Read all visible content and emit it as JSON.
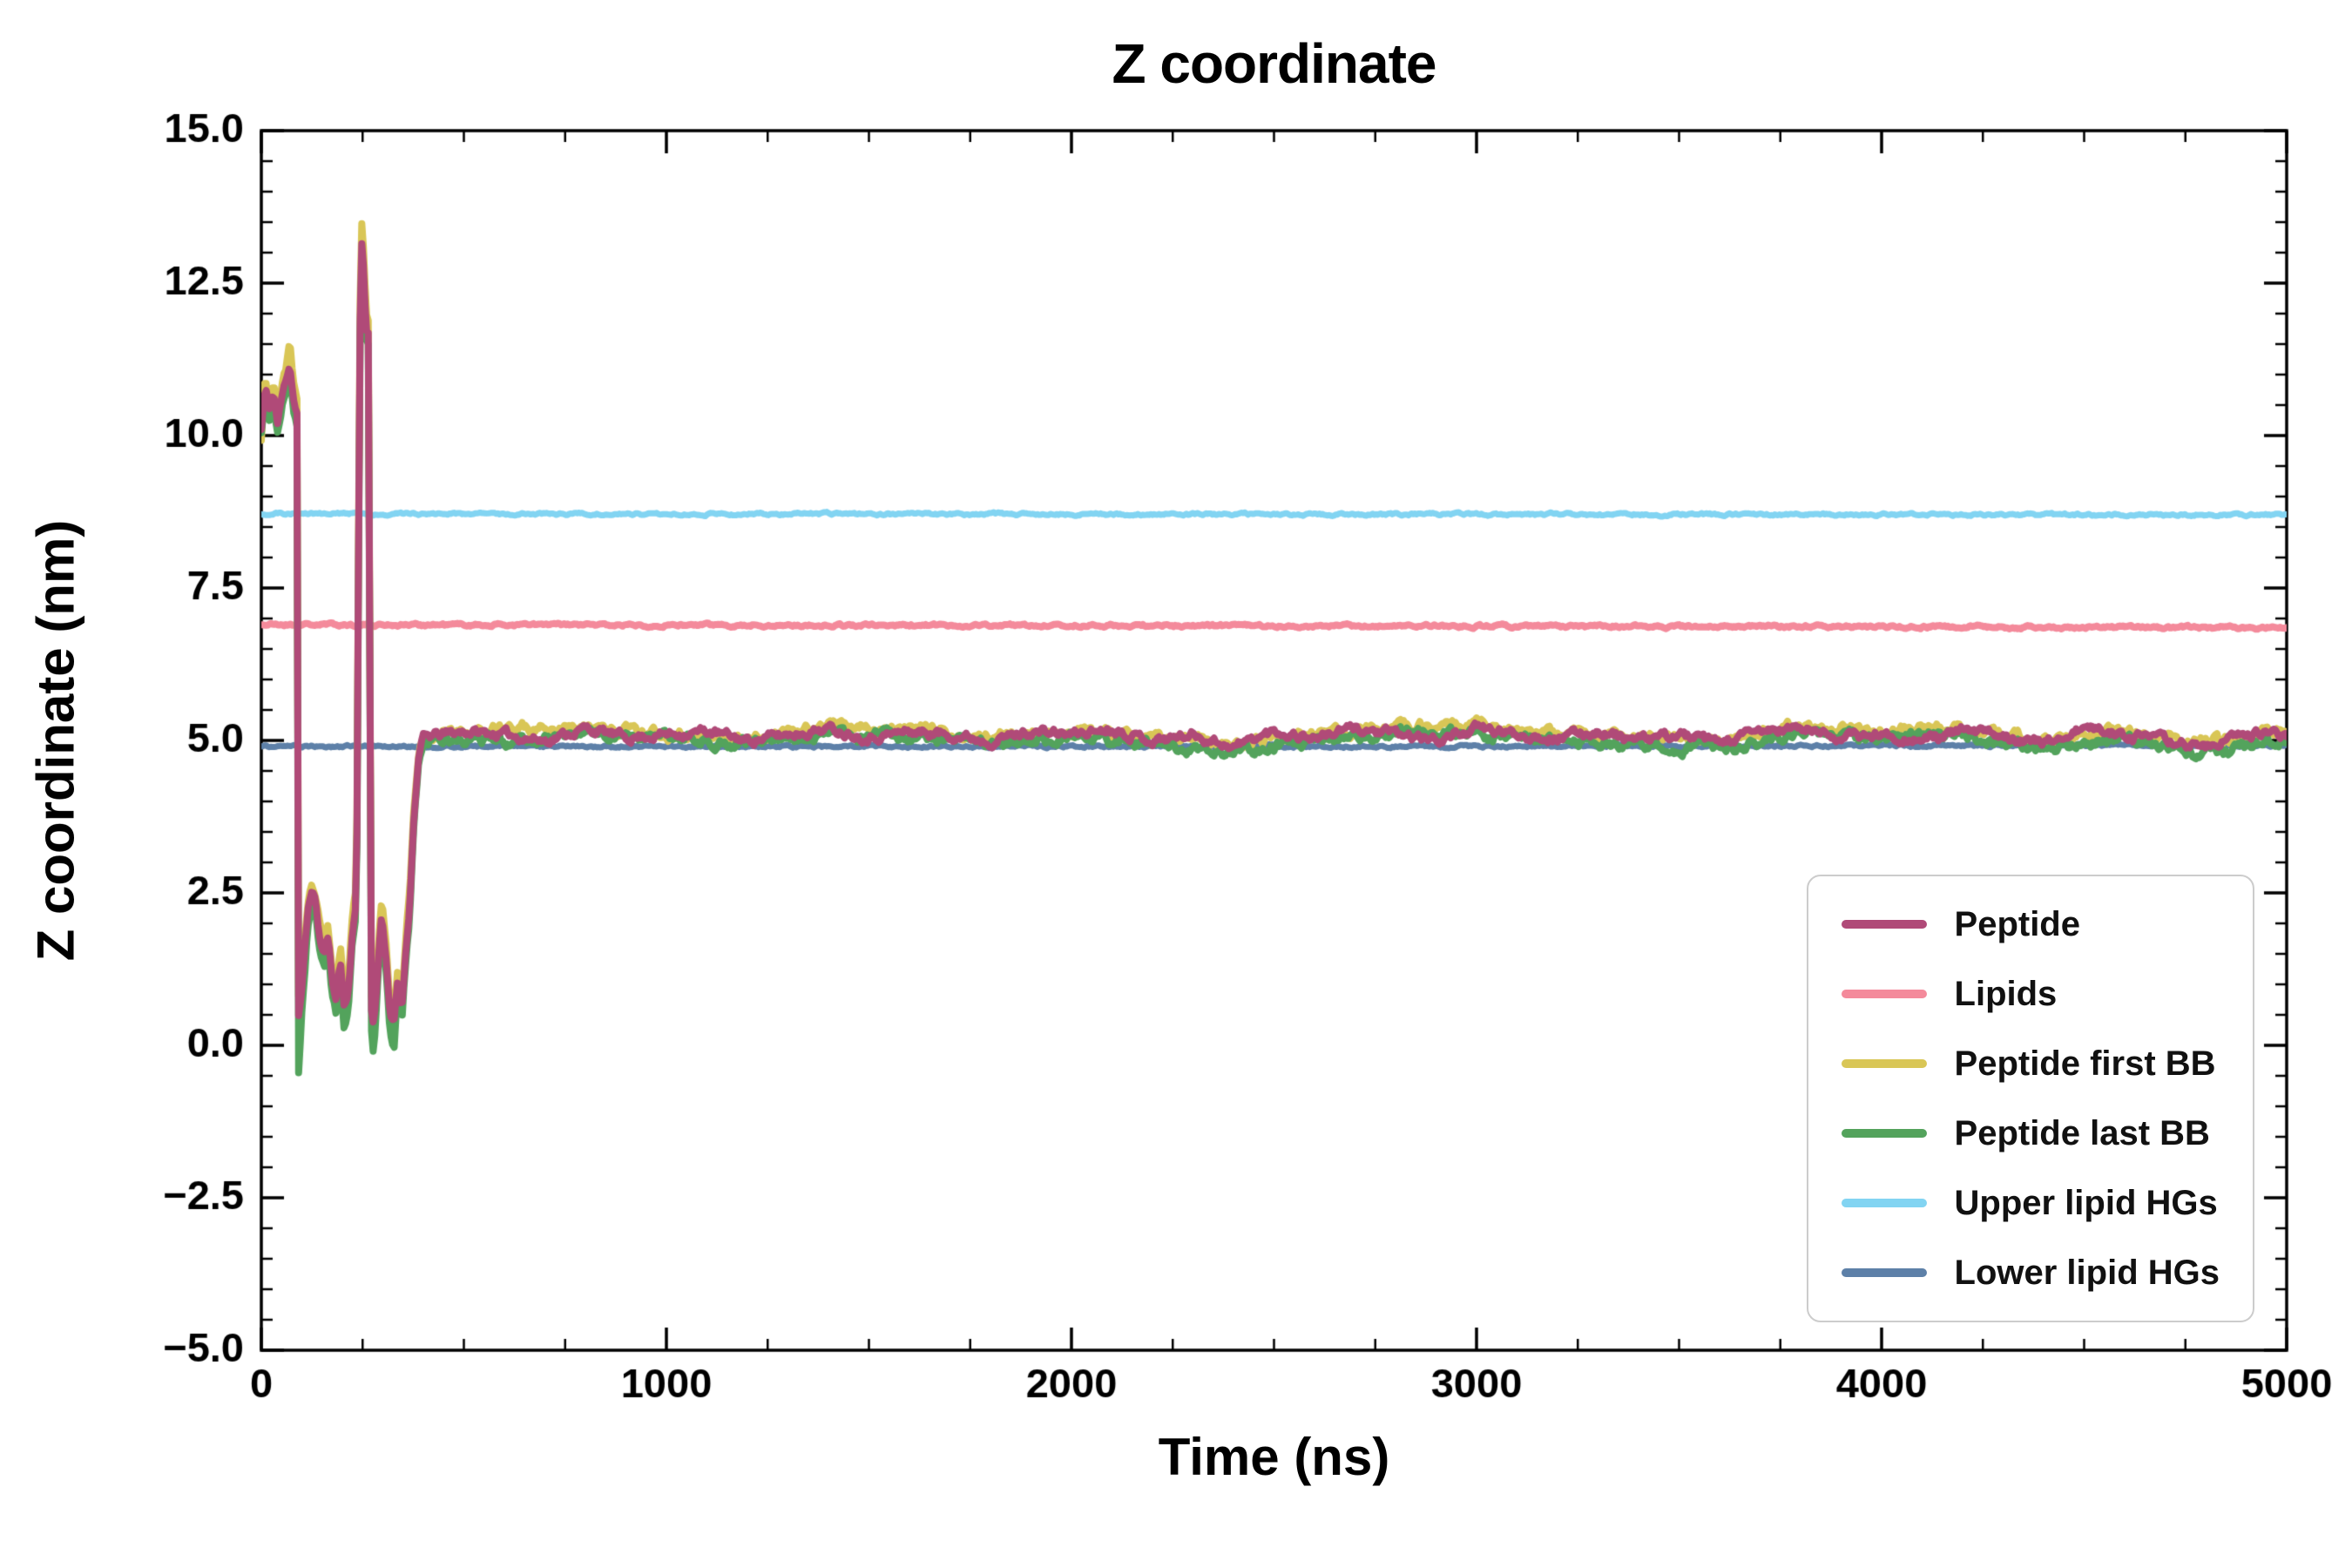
{
  "chart_data": {
    "type": "line",
    "title": "Z coordinate",
    "xlabel": "Time (ns)",
    "ylabel": "Z coordinate (nm)",
    "xlim": [
      0,
      5000
    ],
    "ylim": [
      -5,
      15
    ],
    "grid": false,
    "background": "#ffffff",
    "axis_color": "#000000",
    "xticks": {
      "values": [
        0,
        1000,
        2000,
        3000,
        4000,
        5000
      ],
      "labels": [
        "0",
        "1000",
        "2000",
        "3000",
        "4000",
        "5000"
      ],
      "minor_step": 250
    },
    "yticks": {
      "values": [
        -5,
        -2.5,
        0,
        2.5,
        5,
        7.5,
        10,
        12.5,
        15
      ],
      "labels": [
        "−5.0",
        "−2.5",
        "0.0",
        "2.5",
        "5.0",
        "7.5",
        "10.0",
        "12.5",
        "15.0"
      ],
      "minor_step": 0.5
    },
    "legend": {
      "position": "lower right"
    },
    "series": [
      {
        "name": "Peptide",
        "color": "#b04a78",
        "width": 8,
        "noise": 0.18,
        "seed": 11,
        "z": 6,
        "anchors": [
          [
            0,
            10.1
          ],
          [
            10,
            10.8
          ],
          [
            20,
            10.4
          ],
          [
            30,
            10.7
          ],
          [
            40,
            10.2
          ],
          [
            50,
            10.6
          ],
          [
            60,
            10.9
          ],
          [
            70,
            11.2
          ],
          [
            80,
            10.6
          ],
          [
            88,
            10.4
          ],
          [
            92,
            0.5
          ],
          [
            100,
            0.9
          ],
          [
            115,
            2.2
          ],
          [
            125,
            2.6
          ],
          [
            135,
            2.3
          ],
          [
            145,
            1.7
          ],
          [
            155,
            1.5
          ],
          [
            165,
            1.8
          ],
          [
            175,
            1.0
          ],
          [
            185,
            0.8
          ],
          [
            195,
            1.4
          ],
          [
            205,
            0.6
          ],
          [
            215,
            0.9
          ],
          [
            225,
            1.9
          ],
          [
            235,
            2.3
          ],
          [
            243,
            11.6
          ],
          [
            248,
            13.2
          ],
          [
            252,
            12.8
          ],
          [
            257,
            12.0
          ],
          [
            262,
            11.5
          ],
          [
            266,
            11.9
          ],
          [
            270,
            0.7
          ],
          [
            277,
            0.3
          ],
          [
            287,
            1.2
          ],
          [
            297,
            2.2
          ],
          [
            307,
            1.5
          ],
          [
            317,
            0.5
          ],
          [
            327,
            0.3
          ],
          [
            337,
            1.1
          ],
          [
            347,
            0.6
          ],
          [
            357,
            1.6
          ],
          [
            367,
            2.4
          ],
          [
            377,
            3.8
          ],
          [
            388,
            4.7
          ],
          [
            400,
            5.05
          ],
          [
            500,
            5.15
          ],
          [
            600,
            5.1
          ],
          [
            700,
            5.0
          ],
          [
            800,
            5.2
          ],
          [
            900,
            5.05
          ],
          [
            1000,
            5.1
          ],
          [
            1100,
            5.15
          ],
          [
            1200,
            5.0
          ],
          [
            1300,
            5.1
          ],
          [
            1400,
            5.2
          ],
          [
            1500,
            5.05
          ],
          [
            1600,
            5.15
          ],
          [
            1700,
            5.1
          ],
          [
            1800,
            5.0
          ],
          [
            1900,
            5.15
          ],
          [
            2000,
            5.1
          ],
          [
            2100,
            5.2
          ],
          [
            2200,
            5.0
          ],
          [
            2300,
            5.1
          ],
          [
            2400,
            4.9
          ],
          [
            2500,
            5.15
          ],
          [
            2600,
            5.05
          ],
          [
            2700,
            5.2
          ],
          [
            2800,
            5.1
          ],
          [
            2900,
            5.0
          ],
          [
            3000,
            5.2
          ],
          [
            3100,
            5.1
          ],
          [
            3200,
            5.05
          ],
          [
            3300,
            5.15
          ],
          [
            3400,
            5.0
          ],
          [
            3500,
            5.1
          ],
          [
            3600,
            4.95
          ],
          [
            3700,
            5.15
          ],
          [
            3800,
            5.2
          ],
          [
            3900,
            5.05
          ],
          [
            4000,
            5.1
          ],
          [
            4100,
            5.0
          ],
          [
            4200,
            5.15
          ],
          [
            4300,
            5.1
          ],
          [
            4400,
            4.95
          ],
          [
            4500,
            5.2
          ],
          [
            4600,
            5.1
          ],
          [
            4700,
            5.0
          ],
          [
            4800,
            4.9
          ],
          [
            4900,
            5.1
          ],
          [
            5000,
            5.1
          ]
        ]
      },
      {
        "name": "Lipids",
        "color": "#f48a9b",
        "width": 8,
        "noise": 0.06,
        "seed": 21,
        "z": 3,
        "anchors": [
          [
            0,
            6.9
          ],
          [
            2500,
            6.88
          ],
          [
            5000,
            6.85
          ]
        ]
      },
      {
        "name": "Peptide first BB",
        "color": "#d9c656",
        "width": 8,
        "noise": 0.22,
        "seed": 31,
        "z": 4,
        "anchors": [
          [
            0,
            9.9
          ],
          [
            10,
            11.0
          ],
          [
            20,
            10.3
          ],
          [
            30,
            10.9
          ],
          [
            40,
            10.1
          ],
          [
            50,
            10.8
          ],
          [
            60,
            11.1
          ],
          [
            70,
            11.5
          ],
          [
            80,
            10.8
          ],
          [
            88,
            10.5
          ],
          [
            92,
            0.7
          ],
          [
            100,
            1.1
          ],
          [
            115,
            2.4
          ],
          [
            125,
            2.7
          ],
          [
            135,
            2.4
          ],
          [
            145,
            1.9
          ],
          [
            155,
            1.6
          ],
          [
            165,
            2.0
          ],
          [
            175,
            1.2
          ],
          [
            185,
            1.0
          ],
          [
            195,
            1.6
          ],
          [
            205,
            0.8
          ],
          [
            215,
            1.1
          ],
          [
            225,
            2.1
          ],
          [
            235,
            2.5
          ],
          [
            243,
            11.9
          ],
          [
            248,
            13.4
          ],
          [
            252,
            13.0
          ],
          [
            257,
            12.2
          ],
          [
            262,
            11.7
          ],
          [
            266,
            12.0
          ],
          [
            270,
            0.9
          ],
          [
            277,
            0.5
          ],
          [
            287,
            1.4
          ],
          [
            297,
            2.4
          ],
          [
            307,
            1.7
          ],
          [
            317,
            0.7
          ],
          [
            327,
            0.5
          ],
          [
            337,
            1.3
          ],
          [
            347,
            0.8
          ],
          [
            357,
            1.8
          ],
          [
            367,
            2.6
          ],
          [
            377,
            3.9
          ],
          [
            388,
            4.8
          ],
          [
            400,
            5.1
          ],
          [
            600,
            5.2
          ],
          [
            800,
            5.25
          ],
          [
            1000,
            5.1
          ],
          [
            1200,
            5.05
          ],
          [
            1400,
            5.25
          ],
          [
            1600,
            5.2
          ],
          [
            1800,
            5.05
          ],
          [
            2000,
            5.15
          ],
          [
            2200,
            5.05
          ],
          [
            2400,
            4.95
          ],
          [
            2600,
            5.1
          ],
          [
            2800,
            5.2
          ],
          [
            3000,
            5.25
          ],
          [
            3200,
            5.1
          ],
          [
            3400,
            5.05
          ],
          [
            3600,
            5.0
          ],
          [
            3800,
            5.25
          ],
          [
            4000,
            5.15
          ],
          [
            4200,
            5.2
          ],
          [
            4400,
            5.0
          ],
          [
            4600,
            5.15
          ],
          [
            4800,
            4.95
          ],
          [
            5000,
            5.15
          ]
        ]
      },
      {
        "name": "Peptide last BB",
        "color": "#53a35c",
        "width": 8,
        "noise": 0.22,
        "seed": 41,
        "z": 5,
        "anchors": [
          [
            0,
            10.0
          ],
          [
            10,
            10.6
          ],
          [
            20,
            10.2
          ],
          [
            30,
            10.5
          ],
          [
            40,
            10.0
          ],
          [
            50,
            10.4
          ],
          [
            60,
            10.7
          ],
          [
            70,
            11.0
          ],
          [
            80,
            10.4
          ],
          [
            88,
            10.2
          ],
          [
            92,
            -0.4
          ],
          [
            100,
            0.6
          ],
          [
            115,
            2.0
          ],
          [
            125,
            2.45
          ],
          [
            135,
            2.1
          ],
          [
            145,
            1.5
          ],
          [
            155,
            1.3
          ],
          [
            165,
            1.6
          ],
          [
            175,
            0.8
          ],
          [
            185,
            0.5
          ],
          [
            195,
            1.2
          ],
          [
            205,
            0.3
          ],
          [
            215,
            0.7
          ],
          [
            225,
            1.7
          ],
          [
            235,
            2.1
          ],
          [
            243,
            11.4
          ],
          [
            248,
            12.9
          ],
          [
            252,
            12.5
          ],
          [
            257,
            11.7
          ],
          [
            262,
            11.3
          ],
          [
            266,
            11.6
          ],
          [
            270,
            0.4
          ],
          [
            277,
            -0.2
          ],
          [
            287,
            1.0
          ],
          [
            297,
            2.0
          ],
          [
            307,
            1.3
          ],
          [
            317,
            0.3
          ],
          [
            327,
            -0.1
          ],
          [
            337,
            0.9
          ],
          [
            347,
            0.4
          ],
          [
            357,
            1.4
          ],
          [
            367,
            2.2
          ],
          [
            377,
            3.7
          ],
          [
            388,
            4.6
          ],
          [
            400,
            5.0
          ],
          [
            600,
            5.0
          ],
          [
            800,
            5.1
          ],
          [
            1000,
            5.05
          ],
          [
            1200,
            4.95
          ],
          [
            1400,
            5.1
          ],
          [
            1600,
            5.05
          ],
          [
            1800,
            4.95
          ],
          [
            2000,
            5.05
          ],
          [
            2200,
            4.95
          ],
          [
            2400,
            4.8
          ],
          [
            2600,
            5.0
          ],
          [
            2800,
            5.1
          ],
          [
            3000,
            5.1
          ],
          [
            3200,
            5.0
          ],
          [
            3400,
            4.95
          ],
          [
            3600,
            4.85
          ],
          [
            3800,
            5.1
          ],
          [
            4000,
            5.05
          ],
          [
            4200,
            5.1
          ],
          [
            4400,
            4.85
          ],
          [
            4600,
            5.05
          ],
          [
            4800,
            4.75
          ],
          [
            5000,
            5.05
          ]
        ]
      },
      {
        "name": "Upper lipid HGs",
        "color": "#82d4f2",
        "width": 7,
        "noise": 0.05,
        "seed": 51,
        "z": 1,
        "anchors": [
          [
            0,
            8.72
          ],
          [
            2500,
            8.71
          ],
          [
            5000,
            8.7
          ]
        ]
      },
      {
        "name": "Lower lipid HGs",
        "color": "#5d80a8",
        "width": 7,
        "noise": 0.05,
        "seed": 61,
        "z": 2,
        "anchors": [
          [
            0,
            4.9
          ],
          [
            2500,
            4.9
          ],
          [
            5000,
            4.92
          ]
        ]
      }
    ]
  }
}
